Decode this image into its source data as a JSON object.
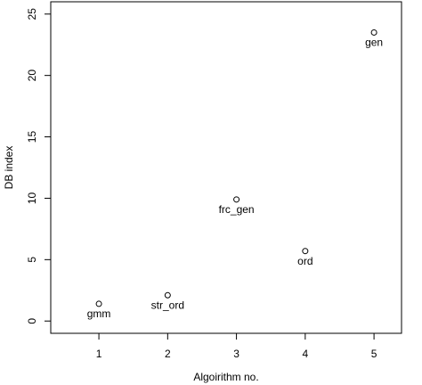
{
  "chart_data": {
    "type": "scatter",
    "xlabel": "Algoirithm no.",
    "ylabel": "DB index",
    "x": [
      1,
      2,
      3,
      4,
      5
    ],
    "values": [
      1.4,
      2.1,
      9.9,
      5.7,
      23.5
    ],
    "point_labels": [
      "gmm",
      "str_ord",
      "frc_gen",
      "ord",
      "gen"
    ],
    "xlim": [
      0.3,
      5.4
    ],
    "ylim": [
      -1,
      26
    ],
    "xticks": [
      1,
      2,
      3,
      4,
      5
    ],
    "yticks": [
      0,
      5,
      10,
      15,
      20,
      25
    ],
    "color": "#000000",
    "grid": false
  }
}
